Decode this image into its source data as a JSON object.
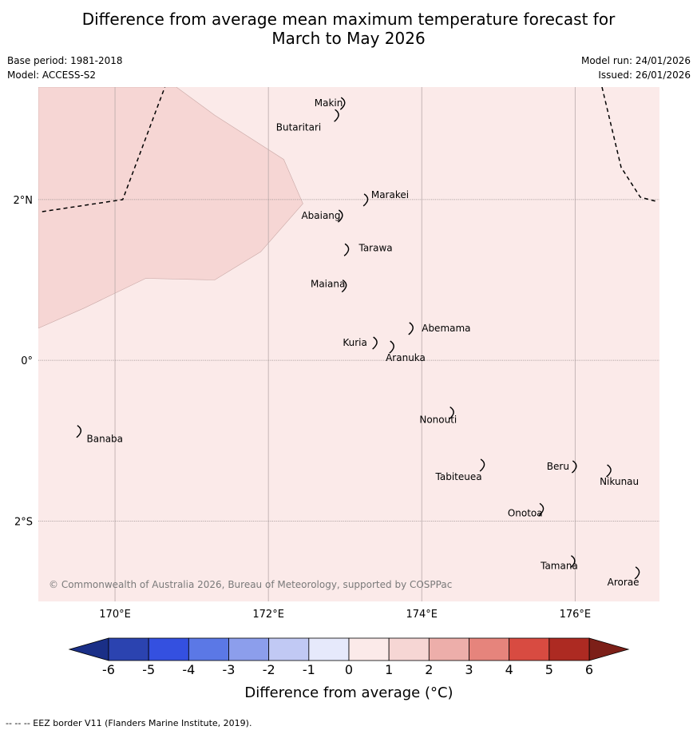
{
  "title_line1": "Difference from average mean maximum temperature forecast for",
  "title_line2": "March to May 2026",
  "base_period": "Base period: 1981-2018",
  "model": "Model: ACCESS-S2",
  "model_run": "Model run: 24/01/2026",
  "issued": "Issued: 26/01/2026",
  "copyright": "© Commonwealth of Australia 2026, Bureau of Meteorology, supported by COSPPac",
  "footer_note": "--  --  -- EEZ border V11 (Flanders Marine Institute, 2019).",
  "map": {
    "lon_range": [
      169,
      177.1
    ],
    "lat_range": [
      -3.0,
      3.4
    ],
    "lon_ticks": [
      {
        "value": 170,
        "label": "170°E"
      },
      {
        "value": 172,
        "label": "172°E"
      },
      {
        "value": 174,
        "label": "174°E"
      },
      {
        "value": 176,
        "label": "176°E"
      }
    ],
    "lat_ticks": [
      {
        "value": 2,
        "label": "2°N"
      },
      {
        "value": 0,
        "label": "0°"
      },
      {
        "value": -2,
        "label": "2°S"
      }
    ],
    "anomaly_regions": [
      {
        "category": "1 to 2",
        "color": "#f6d6d4",
        "outline": [
          [
            169.0,
            3.4
          ],
          [
            170.8,
            3.4
          ],
          [
            171.3,
            3.05
          ],
          [
            172.2,
            2.5
          ],
          [
            172.45,
            1.95
          ],
          [
            171.9,
            1.35
          ],
          [
            171.3,
            1.0
          ],
          [
            170.4,
            1.02
          ],
          [
            169.6,
            0.65
          ],
          [
            169.0,
            0.4
          ]
        ]
      }
    ],
    "background_category": {
      "category": "0 to 1",
      "color": "#fbeae9"
    },
    "eez_borders": [
      [
        [
          169.05,
          1.85
        ],
        [
          170.1,
          2.0
        ],
        [
          170.65,
          3.4
        ]
      ],
      [
        [
          176.35,
          3.4
        ],
        [
          176.6,
          2.4
        ],
        [
          176.85,
          2.03
        ],
        [
          177.05,
          1.98
        ]
      ]
    ],
    "islands": [
      {
        "name": "Makin",
        "lon": 172.98,
        "lat": 3.2,
        "label_lon": 172.6,
        "label_lat": 3.2
      },
      {
        "name": "Butaritari",
        "lon": 172.9,
        "lat": 3.05,
        "label_lon": 172.1,
        "label_lat": 2.9
      },
      {
        "name": "Marakei",
        "lon": 173.28,
        "lat": 2.0,
        "label_lon": 173.34,
        "label_lat": 2.06
      },
      {
        "name": "Abaiang",
        "lon": 172.95,
        "lat": 1.8,
        "label_lon": 172.43,
        "label_lat": 1.8
      },
      {
        "name": "Tarawa",
        "lon": 173.03,
        "lat": 1.38,
        "label_lon": 173.18,
        "label_lat": 1.4
      },
      {
        "name": "Maiana",
        "lon": 173.0,
        "lat": 0.93,
        "label_lon": 172.55,
        "label_lat": 0.95
      },
      {
        "name": "Abemama",
        "lon": 173.87,
        "lat": 0.4,
        "label_lon": 174.0,
        "label_lat": 0.4
      },
      {
        "name": "Kuria",
        "lon": 173.4,
        "lat": 0.22,
        "label_lon": 172.97,
        "label_lat": 0.22
      },
      {
        "name": "Aranuka",
        "lon": 173.62,
        "lat": 0.17,
        "label_lon": 173.53,
        "label_lat": 0.03
      },
      {
        "name": "Nonouti",
        "lon": 174.4,
        "lat": -0.65,
        "label_lon": 173.97,
        "label_lat": -0.74
      },
      {
        "name": "Banaba",
        "lon": 169.54,
        "lat": -0.88,
        "label_lon": 169.63,
        "label_lat": -0.98
      },
      {
        "name": "Tabiteuea",
        "lon": 174.8,
        "lat": -1.3,
        "label_lon": 174.18,
        "label_lat": -1.45
      },
      {
        "name": "Beru",
        "lon": 176.0,
        "lat": -1.32,
        "label_lon": 175.63,
        "label_lat": -1.32
      },
      {
        "name": "Nikunau",
        "lon": 176.45,
        "lat": -1.37,
        "label_lon": 176.32,
        "label_lat": -1.51
      },
      {
        "name": "Onotoa",
        "lon": 175.57,
        "lat": -1.85,
        "label_lon": 175.12,
        "label_lat": -1.9
      },
      {
        "name": "Tamana",
        "lon": 175.98,
        "lat": -2.5,
        "label_lon": 175.55,
        "label_lat": -2.56
      },
      {
        "name": "Arorae",
        "lon": 176.82,
        "lat": -2.64,
        "label_lon": 176.42,
        "label_lat": -2.76
      }
    ]
  },
  "colorbar": {
    "title": "Difference from average (°C)",
    "ticks": [
      "-6",
      "-5",
      "-4",
      "-3",
      "-2",
      "-1",
      "0",
      "1",
      "2",
      "3",
      "4",
      "5",
      "6"
    ],
    "below_color": "#1a2f87",
    "above_color": "#7c1f18",
    "colors": [
      "#2b43b0",
      "#3450e0",
      "#5b78e6",
      "#8c9eec",
      "#c1c9f4",
      "#e6e9fb",
      "#fbeae9",
      "#f6d6d4",
      "#edaeaa",
      "#e6847c",
      "#d84b41",
      "#ad2a22"
    ]
  }
}
